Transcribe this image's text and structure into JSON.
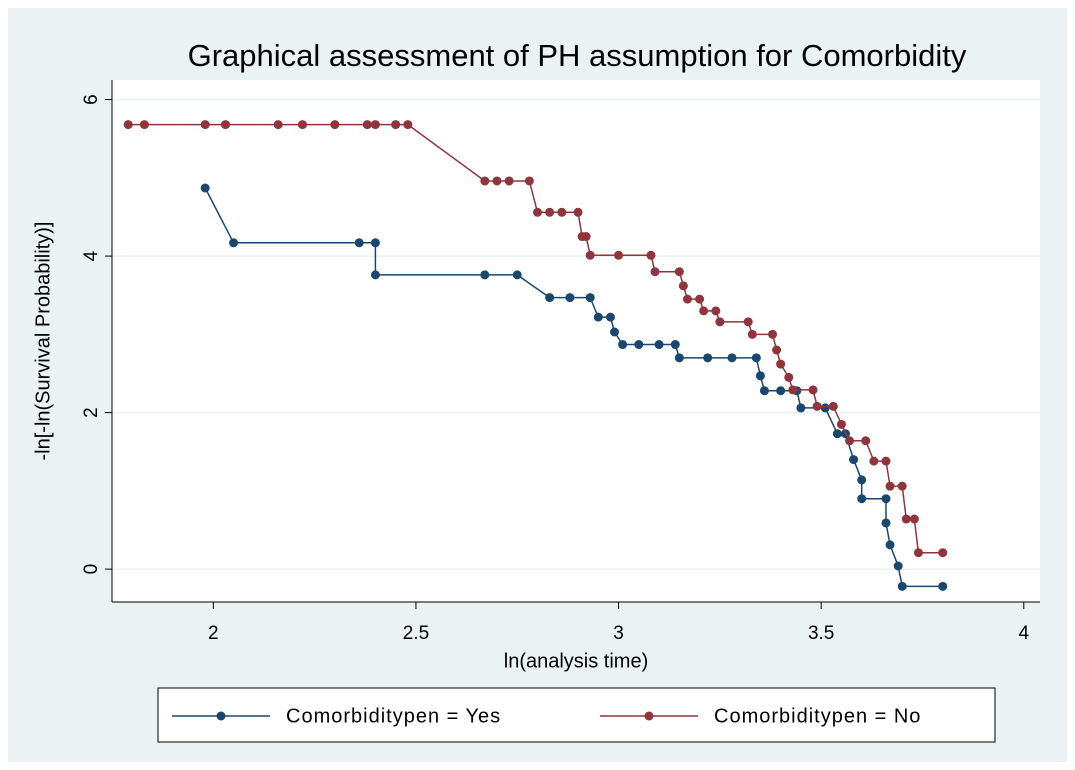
{
  "chart_data": {
    "type": "line",
    "title": "Graphical assessment of PH assumption for Comorbidity",
    "xlabel": "ln(analysis time)",
    "ylabel": "-ln[-ln(Survival Probability)]",
    "xlim": [
      1.75,
      4.04
    ],
    "ylim": [
      -0.42,
      6.25
    ],
    "xticks": [
      2,
      2.5,
      3,
      3.5,
      4
    ],
    "yticks": [
      0,
      2,
      4,
      6
    ],
    "grid": true,
    "legend": "bottom",
    "series": [
      {
        "name": "Comorbiditypen = Yes",
        "color": "#1a476f",
        "x": [
          1.98,
          2.05,
          2.36,
          2.4,
          2.4,
          2.67,
          2.75,
          2.83,
          2.88,
          2.93,
          2.95,
          2.98,
          2.99,
          3.01,
          3.05,
          3.1,
          3.14,
          3.15,
          3.22,
          3.28,
          3.34,
          3.35,
          3.36,
          3.4,
          3.44,
          3.45,
          3.51,
          3.54,
          3.56,
          3.58,
          3.6,
          3.6,
          3.66,
          3.66,
          3.67,
          3.69,
          3.7,
          3.8
        ],
        "values": [
          4.87,
          4.17,
          4.17,
          4.17,
          3.76,
          3.76,
          3.76,
          3.47,
          3.47,
          3.47,
          3.22,
          3.22,
          3.03,
          2.87,
          2.87,
          2.87,
          2.87,
          2.7,
          2.7,
          2.7,
          2.7,
          2.47,
          2.28,
          2.28,
          2.28,
          2.06,
          2.06,
          1.73,
          1.73,
          1.4,
          1.14,
          0.9,
          0.9,
          0.59,
          0.31,
          0.04,
          -0.22,
          -0.22
        ]
      },
      {
        "name": "Comorbiditypen = No",
        "color": "#90353b",
        "x": [
          1.79,
          1.83,
          1.98,
          2.03,
          2.16,
          2.22,
          2.3,
          2.38,
          2.4,
          2.45,
          2.48,
          2.67,
          2.7,
          2.73,
          2.78,
          2.8,
          2.83,
          2.86,
          2.9,
          2.91,
          2.92,
          2.93,
          3.0,
          3.08,
          3.09,
          3.15,
          3.16,
          3.17,
          3.2,
          3.21,
          3.24,
          3.25,
          3.32,
          3.33,
          3.38,
          3.39,
          3.4,
          3.42,
          3.43,
          3.48,
          3.49,
          3.53,
          3.55,
          3.57,
          3.61,
          3.63,
          3.66,
          3.67,
          3.7,
          3.71,
          3.73,
          3.74,
          3.8
        ],
        "values": [
          5.68,
          5.68,
          5.68,
          5.68,
          5.68,
          5.68,
          5.68,
          5.68,
          5.68,
          5.68,
          5.68,
          4.96,
          4.96,
          4.96,
          4.96,
          4.56,
          4.56,
          4.56,
          4.56,
          4.25,
          4.25,
          4.01,
          4.01,
          4.01,
          3.8,
          3.8,
          3.62,
          3.45,
          3.45,
          3.3,
          3.3,
          3.16,
          3.16,
          3.0,
          3.0,
          2.8,
          2.62,
          2.45,
          2.29,
          2.29,
          2.08,
          2.08,
          1.85,
          1.64,
          1.64,
          1.38,
          1.38,
          1.06,
          1.06,
          0.64,
          0.64,
          0.21,
          0.21
        ]
      }
    ]
  }
}
